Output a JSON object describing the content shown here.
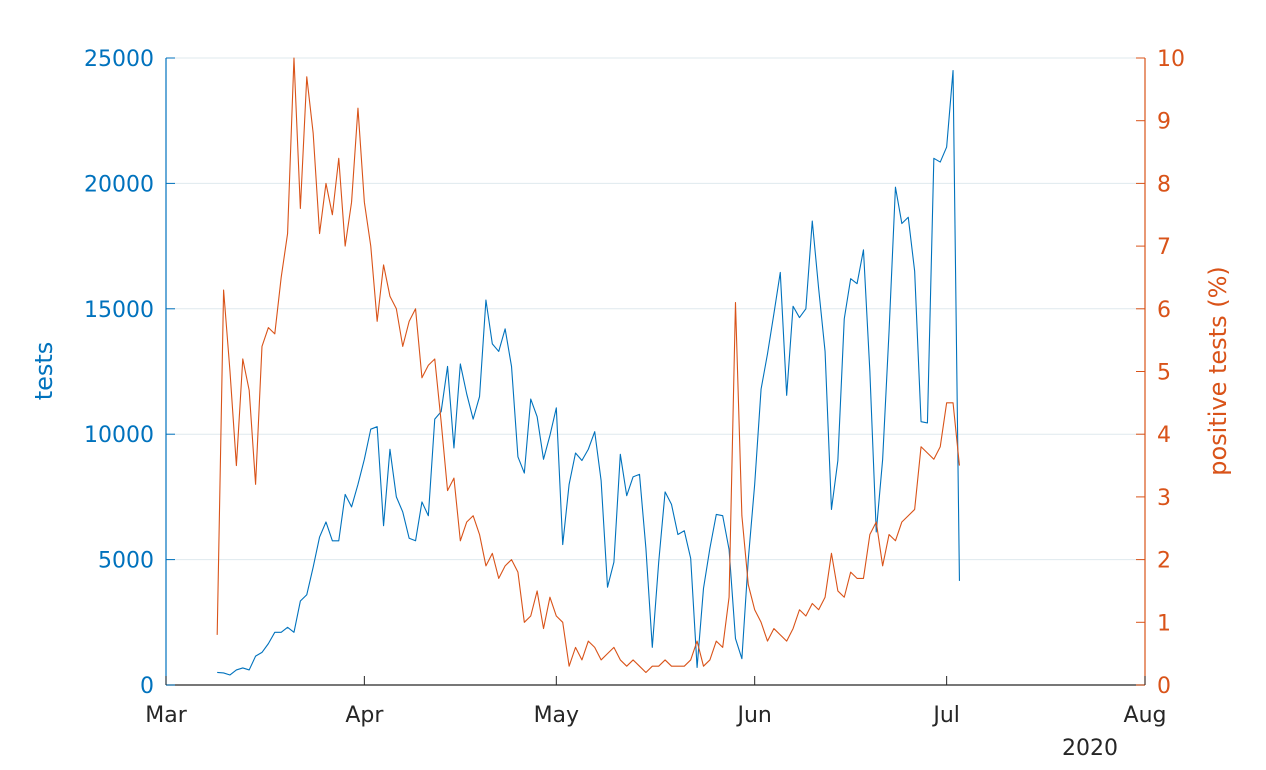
{
  "chart_data": {
    "type": "line",
    "title": "",
    "x_axis": {
      "ticks": [
        "Mar",
        "Apr",
        "May",
        "Jun",
        "Jul",
        "Aug"
      ],
      "tick_dates": [
        "2020-03-01",
        "2020-04-01",
        "2020-05-01",
        "2020-06-01",
        "2020-07-01",
        "2020-08-01"
      ],
      "range": [
        "2020-03-01",
        "2020-08-01"
      ],
      "year_label": "2020"
    },
    "y_left": {
      "label": "tests",
      "range": [
        0,
        25000
      ],
      "ticks": [
        "0",
        "5000",
        "10000",
        "15000",
        "20000",
        "25000"
      ],
      "color": "#0072BD"
    },
    "y_right": {
      "label": "positive tests (%)",
      "range": [
        0,
        10
      ],
      "ticks": [
        "0",
        "1",
        "2",
        "3",
        "4",
        "5",
        "6",
        "7",
        "8",
        "9",
        "10"
      ],
      "color": "#D95319"
    },
    "grid": "horizontal",
    "start_date": "2020-03-09",
    "series": [
      {
        "name": "tests",
        "axis": "left",
        "color": "#0072BD",
        "values": [
          500,
          480,
          400,
          600,
          680,
          600,
          1150,
          1300,
          1650,
          2100,
          2100,
          2300,
          2100,
          3350,
          3600,
          4700,
          5900,
          6500,
          5750,
          5750,
          7600,
          7100,
          8000,
          9000,
          10200,
          10300,
          6350,
          9400,
          7500,
          6900,
          5850,
          5750,
          7300,
          6750,
          10600,
          10900,
          12700,
          9450,
          12800,
          11600,
          10600,
          11500,
          15350,
          13600,
          13300,
          14200,
          12700,
          9100,
          8450,
          11400,
          10700,
          9000,
          9950,
          11050,
          5600,
          8000,
          9250,
          8950,
          9400,
          10100,
          8150,
          3900,
          4900,
          9200,
          7550,
          8300,
          8400,
          5450,
          1500,
          4900,
          7700,
          7200,
          6000,
          6150,
          5050,
          700,
          3850,
          5450,
          6800,
          6750,
          5400,
          1850,
          1050,
          5000,
          8000,
          11800,
          13200,
          14800,
          16450,
          11550,
          15100,
          14650,
          15000,
          18500,
          15800,
          13300,
          7000,
          8950,
          14600,
          16200,
          16000,
          17350,
          12500,
          6100,
          9000,
          14100,
          19850,
          18400,
          18650,
          16500,
          10500,
          10450,
          21000,
          20850,
          21450,
          24500,
          4150
        ]
      },
      {
        "name": "positive tests (%)",
        "axis": "right",
        "color": "#D95319",
        "values": [
          0.8,
          6.3,
          5.0,
          3.5,
          5.2,
          4.7,
          3.2,
          5.4,
          5.7,
          5.6,
          6.5,
          7.2,
          10.0,
          7.6,
          9.7,
          8.8,
          7.2,
          8.0,
          7.5,
          8.4,
          7.0,
          7.7,
          9.2,
          7.7,
          7.0,
          5.8,
          6.7,
          6.2,
          6.0,
          5.4,
          5.8,
          6.0,
          4.9,
          5.1,
          5.2,
          4.2,
          3.1,
          3.3,
          2.3,
          2.6,
          2.7,
          2.4,
          1.9,
          2.1,
          1.7,
          1.9,
          2.0,
          1.8,
          1.0,
          1.1,
          1.5,
          0.9,
          1.4,
          1.1,
          1.0,
          0.3,
          0.6,
          0.4,
          0.7,
          0.6,
          0.4,
          0.5,
          0.6,
          0.4,
          0.3,
          0.4,
          0.3,
          0.2,
          0.3,
          0.3,
          0.4,
          0.3,
          0.3,
          0.3,
          0.4,
          0.7,
          0.3,
          0.4,
          0.7,
          0.6,
          1.4,
          6.1,
          2.7,
          1.6,
          1.2,
          1.0,
          0.7,
          0.9,
          0.8,
          0.7,
          0.9,
          1.2,
          1.1,
          1.3,
          1.2,
          1.4,
          2.1,
          1.5,
          1.4,
          1.8,
          1.7,
          1.7,
          2.4,
          2.6,
          1.9,
          2.4,
          2.3,
          2.6,
          2.7,
          2.8,
          3.8,
          3.7,
          3.6,
          3.8,
          4.5,
          4.5,
          3.5
        ]
      }
    ]
  }
}
